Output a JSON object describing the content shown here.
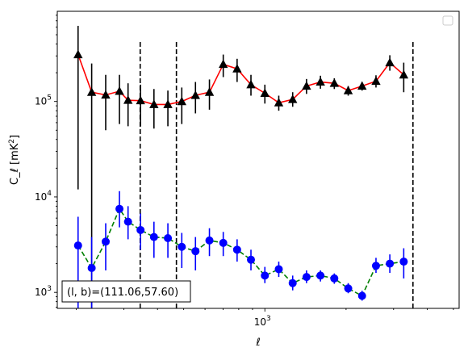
{
  "chart_data": {
    "type": "scatter",
    "xscale": "log",
    "yscale": "log",
    "xlabel": "ℓ",
    "ylabel": "C_ℓ  [mK²]",
    "xlim": [
      170,
      5250
    ],
    "ylim": [
      680,
      880000
    ],
    "xticks": [
      {
        "value": 1000,
        "base": "10",
        "exp": "3"
      }
    ],
    "yticks": [
      {
        "value": 1000,
        "base": "10",
        "exp": "3"
      },
      {
        "value": 10000,
        "base": "10",
        "exp": "4"
      },
      {
        "value": 100000,
        "base": "10",
        "exp": "5"
      }
    ],
    "vlines": [
      345,
      470,
      3540
    ],
    "legend": "top-right (empty)",
    "annotation": "(l, b)=(111.06,57.60)",
    "series": [
      {
        "marker": "triangle",
        "marker_color": "#000000",
        "line_color": "#ff0000",
        "line_style": "solid",
        "points": [
          {
            "x": 203,
            "y": 310000,
            "lo": 12000,
            "hi": 620000
          },
          {
            "x": 228,
            "y": 125000,
            "lo": 680,
            "hi": 250000
          },
          {
            "x": 257,
            "y": 117000,
            "lo": 50000,
            "hi": 190000
          },
          {
            "x": 289,
            "y": 128000,
            "lo": 58000,
            "hi": 190000
          },
          {
            "x": 311,
            "y": 103000,
            "lo": 55000,
            "hi": 155000
          },
          {
            "x": 346,
            "y": 102000,
            "lo": 55000,
            "hi": 150000
          },
          {
            "x": 388,
            "y": 93000,
            "lo": 52000,
            "hi": 135000
          },
          {
            "x": 437,
            "y": 93000,
            "lo": 55000,
            "hi": 130000
          },
          {
            "x": 492,
            "y": 100000,
            "lo": 58000,
            "hi": 140000
          },
          {
            "x": 553,
            "y": 116000,
            "lo": 75000,
            "hi": 160000
          },
          {
            "x": 623,
            "y": 125000,
            "lo": 82000,
            "hi": 170000
          },
          {
            "x": 701,
            "y": 245000,
            "lo": 180000,
            "hi": 310000
          },
          {
            "x": 789,
            "y": 220000,
            "lo": 160000,
            "hi": 280000
          },
          {
            "x": 888,
            "y": 150000,
            "lo": 115000,
            "hi": 190000
          },
          {
            "x": 1000,
            "y": 122000,
            "lo": 95000,
            "hi": 150000
          },
          {
            "x": 1126,
            "y": 97000,
            "lo": 80000,
            "hi": 115000
          },
          {
            "x": 1268,
            "y": 105000,
            "lo": 88000,
            "hi": 125000
          },
          {
            "x": 1427,
            "y": 145000,
            "lo": 120000,
            "hi": 172000
          },
          {
            "x": 1607,
            "y": 160000,
            "lo": 136000,
            "hi": 186000
          },
          {
            "x": 1809,
            "y": 155000,
            "lo": 135000,
            "hi": 175000
          },
          {
            "x": 2037,
            "y": 130000,
            "lo": 115000,
            "hi": 145000
          },
          {
            "x": 2293,
            "y": 145000,
            "lo": 130000,
            "hi": 160000
          },
          {
            "x": 2582,
            "y": 163000,
            "lo": 140000,
            "hi": 188000
          },
          {
            "x": 2906,
            "y": 255000,
            "lo": 210000,
            "hi": 305000
          },
          {
            "x": 3272,
            "y": 190000,
            "lo": 125000,
            "hi": 255000
          }
        ]
      },
      {
        "marker": "circle",
        "marker_color": "#0000ff",
        "line_color": "#008000",
        "line_style": "dashed",
        "points": [
          {
            "x": 203,
            "y": 3100,
            "lo": 680,
            "hi": 6200
          },
          {
            "x": 228,
            "y": 1800,
            "lo": 680,
            "hi": 3800
          },
          {
            "x": 257,
            "y": 3400,
            "lo": 1700,
            "hi": 5300
          },
          {
            "x": 289,
            "y": 7500,
            "lo": 4800,
            "hi": 11500
          },
          {
            "x": 311,
            "y": 5500,
            "lo": 3600,
            "hi": 8000
          },
          {
            "x": 346,
            "y": 4500,
            "lo": 2800,
            "hi": 6700
          },
          {
            "x": 388,
            "y": 3800,
            "lo": 2300,
            "hi": 5500
          },
          {
            "x": 437,
            "y": 3700,
            "lo": 2300,
            "hi": 5300
          },
          {
            "x": 492,
            "y": 3000,
            "lo": 1800,
            "hi": 4200
          },
          {
            "x": 553,
            "y": 2700,
            "lo": 1700,
            "hi": 3800
          },
          {
            "x": 623,
            "y": 3500,
            "lo": 2400,
            "hi": 4700
          },
          {
            "x": 701,
            "y": 3300,
            "lo": 2400,
            "hi": 4300
          },
          {
            "x": 789,
            "y": 2800,
            "lo": 2100,
            "hi": 3600
          },
          {
            "x": 888,
            "y": 2200,
            "lo": 1700,
            "hi": 2800
          },
          {
            "x": 1000,
            "y": 1500,
            "lo": 1250,
            "hi": 1850
          },
          {
            "x": 1126,
            "y": 1750,
            "lo": 1450,
            "hi": 2100
          },
          {
            "x": 1268,
            "y": 1250,
            "lo": 1050,
            "hi": 1500
          },
          {
            "x": 1427,
            "y": 1450,
            "lo": 1250,
            "hi": 1700
          },
          {
            "x": 1607,
            "y": 1500,
            "lo": 1300,
            "hi": 1700
          },
          {
            "x": 1809,
            "y": 1400,
            "lo": 1230,
            "hi": 1580
          },
          {
            "x": 2037,
            "y": 1100,
            "lo": 980,
            "hi": 1250
          },
          {
            "x": 2293,
            "y": 920,
            "lo": 820,
            "hi": 1040
          },
          {
            "x": 2582,
            "y": 1900,
            "lo": 1600,
            "hi": 2300
          },
          {
            "x": 2906,
            "y": 2000,
            "lo": 1600,
            "hi": 2500
          },
          {
            "x": 3272,
            "y": 2100,
            "lo": 1400,
            "hi": 2900
          }
        ]
      }
    ]
  }
}
